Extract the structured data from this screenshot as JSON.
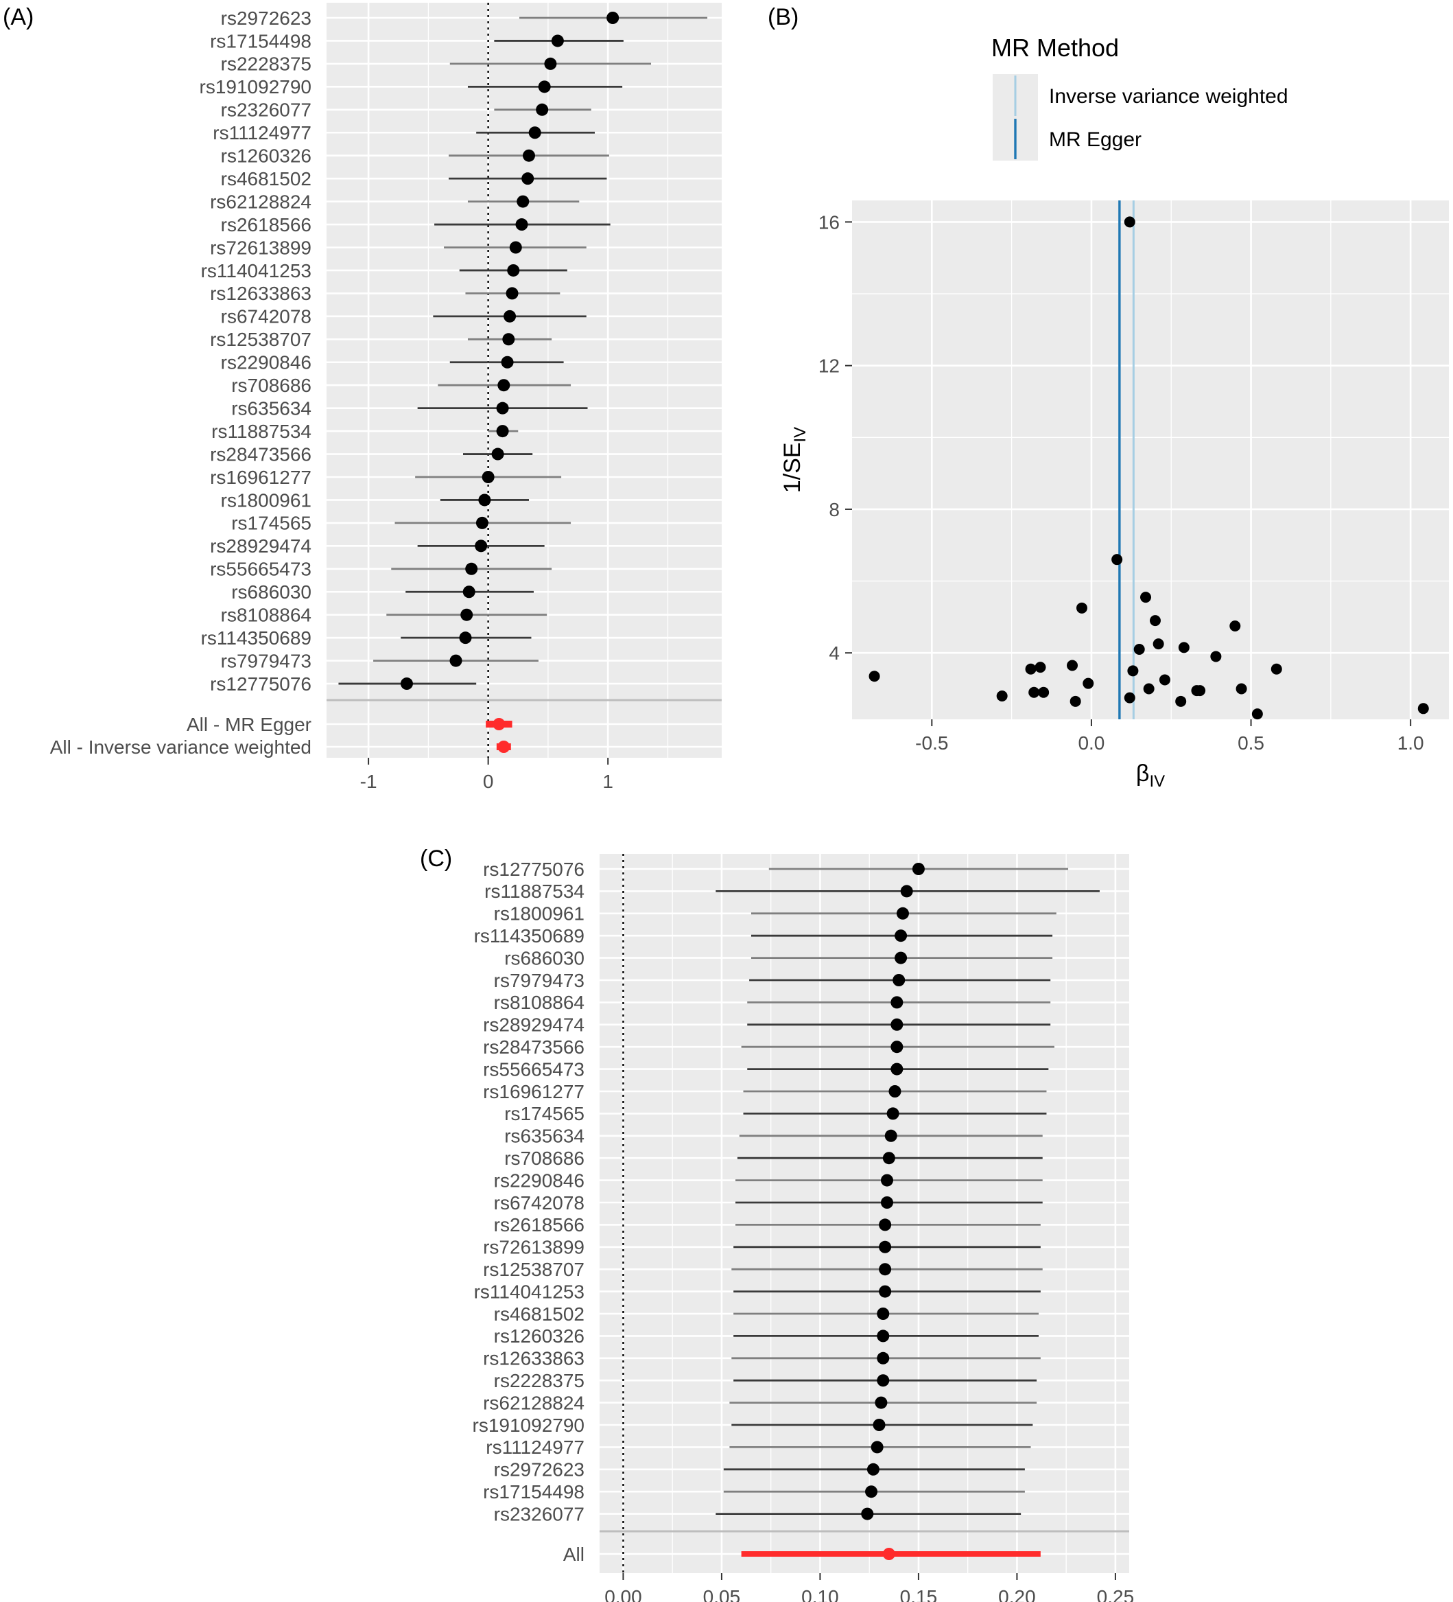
{
  "panels": {
    "a": {
      "label": "(A)"
    },
    "b": {
      "label": "(B)"
    },
    "c": {
      "label": "(C)"
    }
  },
  "colors": {
    "panel_bg": "#EBEBEB",
    "grid": "#FFFFFF",
    "point": "#000000",
    "ci_line": "#7F7F7F",
    "summary": "#FF2B2B",
    "ivw_line": "#A6CEE3",
    "egger_line": "#1F78B4",
    "text": "#4D4D4D"
  },
  "chart_data": [
    {
      "id": "panelA",
      "type": "forest",
      "xlim": [
        -1.35,
        1.95
      ],
      "xticks": [
        -1,
        0,
        1
      ],
      "reference_line": 0,
      "snps": [
        {
          "label": "rs2972623",
          "est": 1.04,
          "lo": 0.26,
          "hi": 1.83
        },
        {
          "label": "rs17154498",
          "est": 0.58,
          "lo": 0.05,
          "hi": 1.13
        },
        {
          "label": "rs2228375",
          "est": 0.52,
          "lo": -0.32,
          "hi": 1.36
        },
        {
          "label": "rs191092790",
          "est": 0.47,
          "lo": -0.17,
          "hi": 1.12
        },
        {
          "label": "rs2326077",
          "est": 0.45,
          "lo": 0.05,
          "hi": 0.86
        },
        {
          "label": "rs11124977",
          "est": 0.39,
          "lo": -0.1,
          "hi": 0.89
        },
        {
          "label": "rs1260326",
          "est": 0.34,
          "lo": -0.33,
          "hi": 1.01
        },
        {
          "label": "rs4681502",
          "est": 0.33,
          "lo": -0.33,
          "hi": 0.99
        },
        {
          "label": "rs62128824",
          "est": 0.29,
          "lo": -0.17,
          "hi": 0.76
        },
        {
          "label": "rs2618566",
          "est": 0.28,
          "lo": -0.45,
          "hi": 1.02
        },
        {
          "label": "rs72613899",
          "est": 0.23,
          "lo": -0.37,
          "hi": 0.82
        },
        {
          "label": "rs114041253",
          "est": 0.21,
          "lo": -0.24,
          "hi": 0.66
        },
        {
          "label": "rs12633863",
          "est": 0.2,
          "lo": -0.19,
          "hi": 0.6
        },
        {
          "label": "rs6742078",
          "est": 0.18,
          "lo": -0.46,
          "hi": 0.82
        },
        {
          "label": "rs12538707",
          "est": 0.17,
          "lo": -0.17,
          "hi": 0.53
        },
        {
          "label": "rs2290846",
          "est": 0.16,
          "lo": -0.32,
          "hi": 0.63
        },
        {
          "label": "rs708686",
          "est": 0.13,
          "lo": -0.42,
          "hi": 0.69
        },
        {
          "label": "rs635634",
          "est": 0.12,
          "lo": -0.59,
          "hi": 0.83
        },
        {
          "label": "rs11887534",
          "est": 0.12,
          "lo": 0.0,
          "hi": 0.25
        },
        {
          "label": "rs28473566",
          "est": 0.08,
          "lo": -0.21,
          "hi": 0.37
        },
        {
          "label": "rs16961277",
          "est": 0.0,
          "lo": -0.61,
          "hi": 0.61
        },
        {
          "label": "rs1800961",
          "est": -0.03,
          "lo": -0.4,
          "hi": 0.34
        },
        {
          "label": "rs174565",
          "est": -0.05,
          "lo": -0.78,
          "hi": 0.69
        },
        {
          "label": "rs28929474",
          "est": -0.06,
          "lo": -0.59,
          "hi": 0.47
        },
        {
          "label": "rs55665473",
          "est": -0.14,
          "lo": -0.81,
          "hi": 0.53
        },
        {
          "label": "rs686030",
          "est": -0.16,
          "lo": -0.69,
          "hi": 0.38
        },
        {
          "label": "rs8108864",
          "est": -0.18,
          "lo": -0.85,
          "hi": 0.49
        },
        {
          "label": "rs114350689",
          "est": -0.19,
          "lo": -0.73,
          "hi": 0.36
        },
        {
          "label": "rs7979473",
          "est": -0.27,
          "lo": -0.96,
          "hi": 0.42
        },
        {
          "label": "rs12775076",
          "est": -0.68,
          "lo": -1.25,
          "hi": -0.1
        }
      ],
      "summary": [
        {
          "label": "All - MR Egger",
          "est": 0.09,
          "lo": -0.02,
          "hi": 0.2
        },
        {
          "label": "All - Inverse variance weighted",
          "est": 0.13,
          "lo": 0.07,
          "hi": 0.19
        }
      ]
    },
    {
      "id": "panelB",
      "type": "scatter",
      "xlabel": "βIV",
      "xlabel_main": "β",
      "xlabel_sub": "IV",
      "ylabel": "1/SEIV",
      "ylabel_main": "1/SE",
      "ylabel_sub": "IV",
      "xlim": [
        -0.75,
        1.12
      ],
      "ylim": [
        2.15,
        16.6
      ],
      "xticks": [
        -0.5,
        0.0,
        0.5,
        1.0
      ],
      "xtick_labels": [
        "-0.5",
        "0.0",
        "0.5",
        "1.0"
      ],
      "yticks": [
        4,
        8,
        12,
        16
      ],
      "ytick_labels": [
        "4",
        "8",
        "12",
        "16"
      ],
      "legend": {
        "title": "MR Method",
        "entries": [
          {
            "name": "Inverse variance weighted",
            "value": 0.132
          },
          {
            "name": "MR Egger",
            "value": 0.088
          }
        ]
      },
      "points": [
        {
          "x": 0.12,
          "y": 16.0
        },
        {
          "x": 0.08,
          "y": 6.6
        },
        {
          "x": 0.17,
          "y": 5.55
        },
        {
          "x": -0.03,
          "y": 5.25
        },
        {
          "x": 0.2,
          "y": 4.9
        },
        {
          "x": 0.45,
          "y": 4.75
        },
        {
          "x": 0.21,
          "y": 4.25
        },
        {
          "x": 0.15,
          "y": 4.1
        },
        {
          "x": 0.29,
          "y": 4.15
        },
        {
          "x": 0.39,
          "y": 3.9
        },
        {
          "x": -0.06,
          "y": 3.65
        },
        {
          "x": -0.16,
          "y": 3.6
        },
        {
          "x": -0.19,
          "y": 3.55
        },
        {
          "x": 0.13,
          "y": 3.5
        },
        {
          "x": 0.58,
          "y": 3.55
        },
        {
          "x": -0.68,
          "y": 3.35
        },
        {
          "x": 0.23,
          "y": 3.25
        },
        {
          "x": -0.01,
          "y": 3.15
        },
        {
          "x": 0.18,
          "y": 3.0
        },
        {
          "x": 0.47,
          "y": 3.0
        },
        {
          "x": 0.33,
          "y": 2.95
        },
        {
          "x": 0.34,
          "y": 2.95
        },
        {
          "x": -0.18,
          "y": 2.9
        },
        {
          "x": -0.15,
          "y": 2.9
        },
        {
          "x": -0.28,
          "y": 2.8
        },
        {
          "x": 0.12,
          "y": 2.75
        },
        {
          "x": -0.05,
          "y": 2.65
        },
        {
          "x": 0.28,
          "y": 2.65
        },
        {
          "x": 1.04,
          "y": 2.45
        },
        {
          "x": 0.52,
          "y": 2.3
        }
      ]
    },
    {
      "id": "panelC",
      "type": "forest",
      "xlim": [
        -0.012,
        0.257
      ],
      "xticks": [
        0.0,
        0.05,
        0.1,
        0.15,
        0.2,
        0.25
      ],
      "xtick_labels": [
        "0.00",
        "0.05",
        "0.10",
        "0.15",
        "0.20",
        "0.25"
      ],
      "reference_line": 0,
      "snps": [
        {
          "label": "rs12775076",
          "est": 0.15,
          "lo": 0.074,
          "hi": 0.226
        },
        {
          "label": "rs11887534",
          "est": 0.144,
          "lo": 0.047,
          "hi": 0.242
        },
        {
          "label": "rs1800961",
          "est": 0.142,
          "lo": 0.065,
          "hi": 0.22
        },
        {
          "label": "rs114350689",
          "est": 0.141,
          "lo": 0.065,
          "hi": 0.218
        },
        {
          "label": "rs686030",
          "est": 0.141,
          "lo": 0.065,
          "hi": 0.218
        },
        {
          "label": "rs7979473",
          "est": 0.14,
          "lo": 0.064,
          "hi": 0.217
        },
        {
          "label": "rs8108864",
          "est": 0.139,
          "lo": 0.063,
          "hi": 0.217
        },
        {
          "label": "rs28929474",
          "est": 0.139,
          "lo": 0.063,
          "hi": 0.217
        },
        {
          "label": "rs28473566",
          "est": 0.139,
          "lo": 0.06,
          "hi": 0.219
        },
        {
          "label": "rs55665473",
          "est": 0.139,
          "lo": 0.063,
          "hi": 0.216
        },
        {
          "label": "rs16961277",
          "est": 0.138,
          "lo": 0.061,
          "hi": 0.215
        },
        {
          "label": "rs174565",
          "est": 0.137,
          "lo": 0.061,
          "hi": 0.215
        },
        {
          "label": "rs635634",
          "est": 0.136,
          "lo": 0.059,
          "hi": 0.213
        },
        {
          "label": "rs708686",
          "est": 0.135,
          "lo": 0.058,
          "hi": 0.213
        },
        {
          "label": "rs2290846",
          "est": 0.134,
          "lo": 0.057,
          "hi": 0.213
        },
        {
          "label": "rs6742078",
          "est": 0.134,
          "lo": 0.057,
          "hi": 0.213
        },
        {
          "label": "rs2618566",
          "est": 0.133,
          "lo": 0.057,
          "hi": 0.212
        },
        {
          "label": "rs72613899",
          "est": 0.133,
          "lo": 0.056,
          "hi": 0.212
        },
        {
          "label": "rs12538707",
          "est": 0.133,
          "lo": 0.055,
          "hi": 0.213
        },
        {
          "label": "rs114041253",
          "est": 0.133,
          "lo": 0.056,
          "hi": 0.212
        },
        {
          "label": "rs4681502",
          "est": 0.132,
          "lo": 0.056,
          "hi": 0.211
        },
        {
          "label": "rs1260326",
          "est": 0.132,
          "lo": 0.056,
          "hi": 0.211
        },
        {
          "label": "rs12633863",
          "est": 0.132,
          "lo": 0.055,
          "hi": 0.212
        },
        {
          "label": "rs2228375",
          "est": 0.132,
          "lo": 0.056,
          "hi": 0.21
        },
        {
          "label": "rs62128824",
          "est": 0.131,
          "lo": 0.054,
          "hi": 0.21
        },
        {
          "label": "rs191092790",
          "est": 0.13,
          "lo": 0.055,
          "hi": 0.208
        },
        {
          "label": "rs11124977",
          "est": 0.129,
          "lo": 0.054,
          "hi": 0.207
        },
        {
          "label": "rs2972623",
          "est": 0.127,
          "lo": 0.051,
          "hi": 0.204
        },
        {
          "label": "rs17154498",
          "est": 0.126,
          "lo": 0.051,
          "hi": 0.204
        },
        {
          "label": "rs2326077",
          "est": 0.124,
          "lo": 0.047,
          "hi": 0.202
        }
      ],
      "summary": [
        {
          "label": "All",
          "est": 0.135,
          "lo": 0.06,
          "hi": 0.212
        }
      ]
    }
  ]
}
